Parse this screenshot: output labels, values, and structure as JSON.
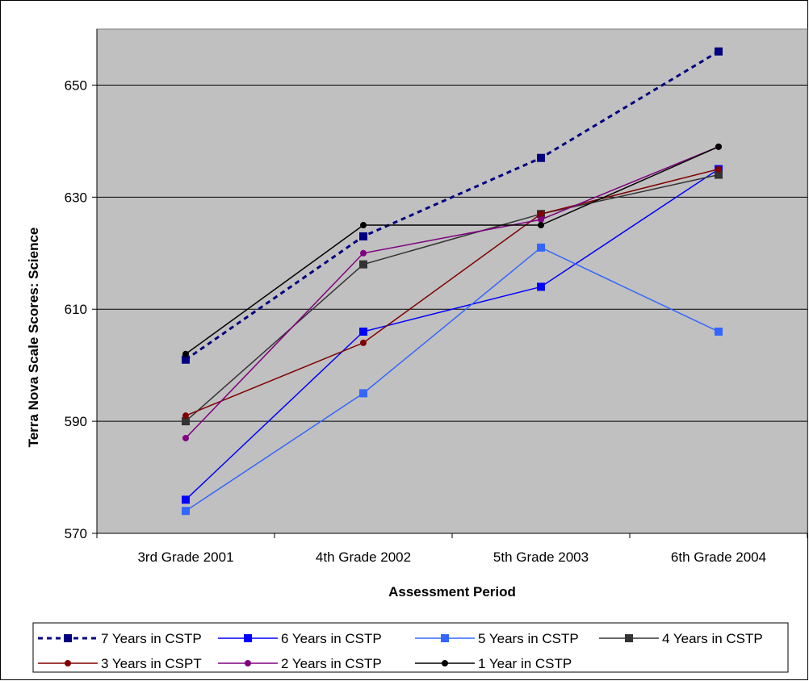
{
  "chart_data": {
    "type": "line",
    "title": "",
    "xlabel": "Assessment Period",
    "ylabel": "Terra Nova Scale Scores: Science",
    "categories": [
      "3rd Grade 2001",
      "4th Grade 2002",
      "5th Grade 2003",
      "6th Grade 2004"
    ],
    "ylim": [
      570,
      660
    ],
    "yticks": [
      570,
      590,
      610,
      630,
      650
    ],
    "grid": true,
    "legend_position": "bottom",
    "plot_background": "#c0c0c0",
    "series": [
      {
        "name": "7 Years in CSTP",
        "values": [
          601,
          623,
          637,
          656
        ],
        "color": "#000080",
        "marker": "square",
        "dashed": true
      },
      {
        "name": "6 Years in CSTP",
        "values": [
          576,
          606,
          614,
          635
        ],
        "color": "#0000ff",
        "marker": "square",
        "dashed": false
      },
      {
        "name": "5 Years in CSTP",
        "values": [
          574,
          595,
          621,
          606
        ],
        "color": "#3366ff",
        "marker": "square",
        "dashed": false
      },
      {
        "name": "4 Years in CSTP",
        "values": [
          590,
          618,
          627,
          634
        ],
        "color": "#333333",
        "marker": "square",
        "dashed": false
      },
      {
        "name": "3 Years in CSPT",
        "values": [
          591,
          604,
          627,
          635
        ],
        "color": "#800000",
        "marker": "circle",
        "dashed": false
      },
      {
        "name": "2 Years in CSTP",
        "values": [
          587,
          620,
          626,
          639
        ],
        "color": "#800080",
        "marker": "circle",
        "dashed": false
      },
      {
        "name": "1 Year in CSTP",
        "values": [
          602,
          625,
          625,
          639
        ],
        "color": "#000000",
        "marker": "circle",
        "dashed": false
      }
    ]
  }
}
